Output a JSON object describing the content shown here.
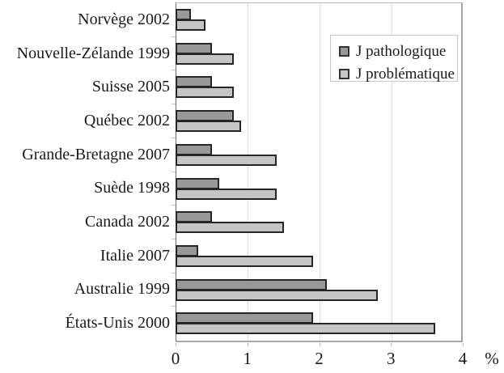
{
  "chart_data": {
    "type": "bar",
    "orientation": "horizontal",
    "title": "",
    "xlabel": "",
    "ylabel": "",
    "x_unit_label": "%",
    "xlim": [
      0,
      4
    ],
    "x_ticks": [
      "0",
      "1",
      "2",
      "3",
      "4"
    ],
    "grid": true,
    "legend_position": "top-right",
    "categories": [
      "Norvège 2002",
      "Nouvelle-Zélande 1999",
      "Suisse 2005",
      "Québec 2002",
      "Grande-Bretagne 2007",
      "Suède 1998",
      "Canada 2002",
      "Italie 2007",
      "Australie 1999",
      "États-Unis 2000"
    ],
    "series": [
      {
        "name": "J pathologique",
        "color": "#989898",
        "values": [
          0.2,
          0.5,
          0.5,
          0.8,
          0.5,
          0.6,
          0.5,
          0.3,
          2.1,
          1.9
        ]
      },
      {
        "name": "J problématique",
        "color": "#c5c5c5",
        "values": [
          0.4,
          0.8,
          0.8,
          0.9,
          1.4,
          1.4,
          1.5,
          1.9,
          2.8,
          3.6
        ]
      }
    ]
  },
  "colors": {
    "bar_border": "#262626",
    "axis": "#6e6e6e",
    "frame": "#a8a8a8",
    "gridline": "#dedede",
    "tick": "#c2c2c2",
    "text": "#1a1a1a",
    "background": "#ffffff"
  }
}
